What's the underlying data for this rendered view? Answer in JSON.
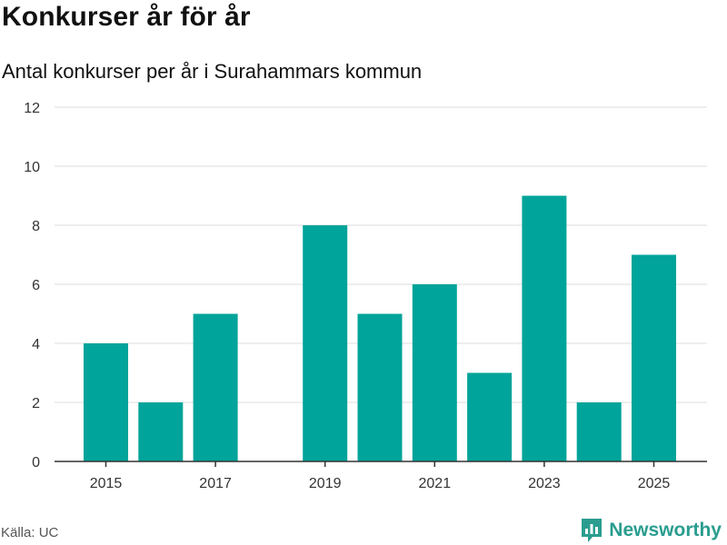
{
  "title": "Konkurser år för år",
  "subtitle": "Antal konkurser per år i Surahammars kommun",
  "source": "Källa: UC",
  "brand": {
    "name": "Newsworthy",
    "icon": "newsworthy-logo-icon"
  },
  "colors": {
    "bar": "#00a49a",
    "grid": "#dddddd",
    "axis": "#333333",
    "brand": "#2a9d8f"
  },
  "chart_data": {
    "type": "bar",
    "title": "Konkurser år för år",
    "xlabel": "",
    "ylabel": "",
    "categories": [
      "2015",
      "2016",
      "2017",
      "2018",
      "2019",
      "2020",
      "2021",
      "2022",
      "2023",
      "2024",
      "2025"
    ],
    "values": [
      4,
      2,
      5,
      0,
      8,
      5,
      6,
      3,
      9,
      2,
      7
    ],
    "ylim": [
      0,
      12
    ],
    "yticks": [
      0,
      2,
      4,
      6,
      8,
      10,
      12
    ],
    "xticks": [
      "2015",
      "2017",
      "2019",
      "2021",
      "2023",
      "2025"
    ],
    "grid": true,
    "legend": "none"
  }
}
